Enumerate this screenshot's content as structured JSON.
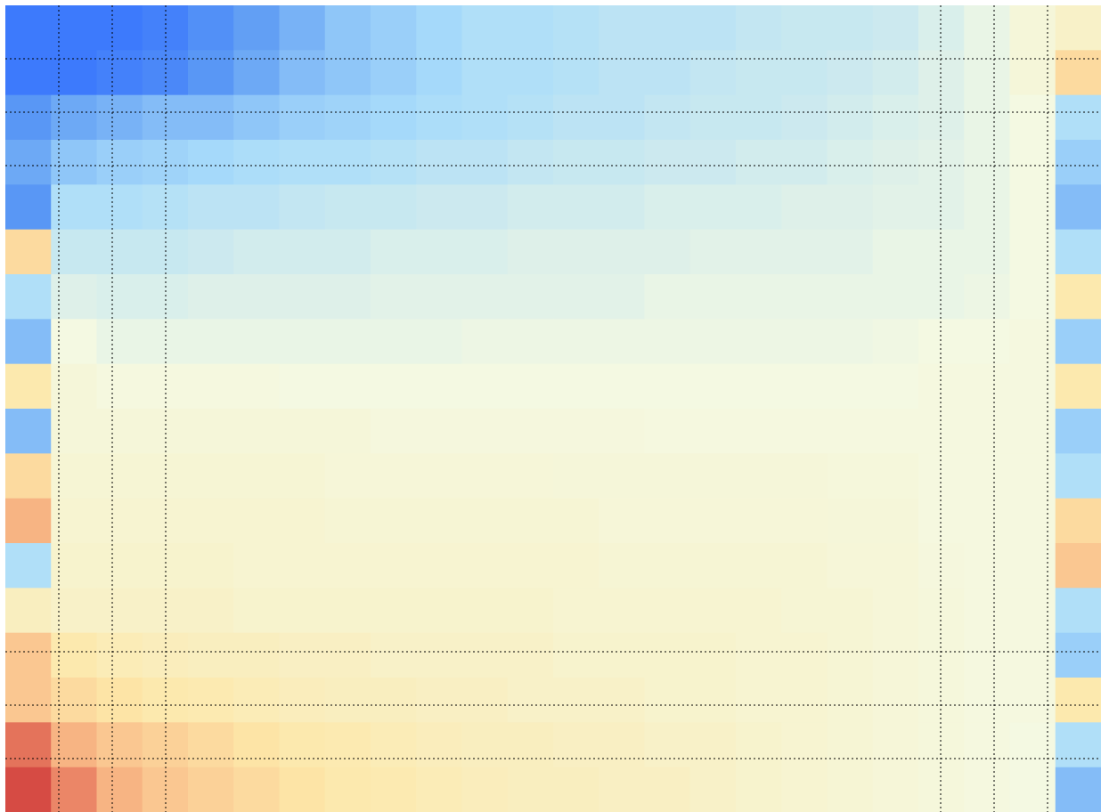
{
  "chart_data": {
    "type": "heatmap",
    "zlim": [
      -1,
      1
    ],
    "colormap": [
      "#2f6bff",
      "#5e9cf4",
      "#a9dcfa",
      "#f4f9e2",
      "#fde7a8",
      "#f6a77a",
      "#c8242d"
    ],
    "z": [
      [
        -0.9,
        -0.9,
        -0.9,
        -0.85,
        -0.75,
        -0.65,
        -0.55,
        -0.45,
        -0.4,
        -0.35,
        -0.3,
        -0.3,
        -0.28,
        -0.25,
        -0.25,
        -0.25,
        -0.22,
        -0.2,
        -0.2,
        -0.18,
        -0.12,
        -0.05,
        0.05,
        0.15
      ],
      [
        -0.9,
        -0.9,
        -0.85,
        -0.8,
        -0.7,
        -0.6,
        -0.5,
        -0.45,
        -0.4,
        -0.35,
        -0.3,
        -0.3,
        -0.28,
        -0.25,
        -0.25,
        -0.22,
        -0.2,
        -0.2,
        -0.18,
        -0.15,
        -0.1,
        -0.05,
        0.05,
        0.4
      ],
      [
        -0.7,
        -0.6,
        -0.55,
        -0.5,
        -0.5,
        -0.45,
        -0.4,
        -0.38,
        -0.35,
        -0.32,
        -0.3,
        -0.28,
        -0.25,
        -0.25,
        -0.22,
        -0.2,
        -0.2,
        -0.18,
        -0.15,
        -0.12,
        -0.1,
        -0.05,
        0.0,
        -0.3
      ],
      [
        -0.6,
        -0.45,
        -0.4,
        -0.38,
        -0.35,
        -0.32,
        -0.3,
        -0.3,
        -0.28,
        -0.25,
        -0.25,
        -0.22,
        -0.2,
        -0.2,
        -0.18,
        -0.18,
        -0.15,
        -0.15,
        -0.12,
        -0.1,
        -0.08,
        -0.05,
        0.0,
        -0.4
      ],
      [
        -0.7,
        -0.3,
        -0.3,
        -0.28,
        -0.25,
        -0.25,
        -0.22,
        -0.2,
        -0.2,
        -0.18,
        -0.18,
        -0.15,
        -0.15,
        -0.15,
        -0.12,
        -0.12,
        -0.12,
        -0.1,
        -0.1,
        -0.08,
        -0.08,
        -0.05,
        0.0,
        -0.5
      ],
      [
        0.4,
        -0.2,
        -0.2,
        -0.2,
        -0.18,
        -0.15,
        -0.15,
        -0.15,
        -0.12,
        -0.12,
        -0.12,
        -0.1,
        -0.1,
        -0.1,
        -0.1,
        -0.08,
        -0.08,
        -0.08,
        -0.08,
        -0.05,
        -0.05,
        -0.05,
        0.0,
        -0.3
      ],
      [
        -0.3,
        -0.1,
        -0.12,
        -0.12,
        -0.1,
        -0.1,
        -0.1,
        -0.1,
        -0.08,
        -0.08,
        -0.08,
        -0.08,
        -0.08,
        -0.08,
        -0.05,
        -0.05,
        -0.05,
        -0.05,
        -0.05,
        -0.05,
        -0.05,
        -0.03,
        0.0,
        0.3
      ],
      [
        -0.5,
        0.0,
        -0.05,
        -0.05,
        -0.05,
        -0.05,
        -0.05,
        -0.05,
        -0.05,
        -0.05,
        -0.03,
        -0.03,
        -0.03,
        -0.03,
        -0.03,
        -0.03,
        -0.03,
        -0.03,
        -0.03,
        -0.02,
        0.0,
        0.0,
        0.02,
        -0.4
      ],
      [
        0.3,
        0.05,
        0.02,
        0.02,
        0.02,
        0.02,
        0.0,
        0.0,
        0.0,
        0.0,
        0.0,
        0.0,
        0.0,
        0.0,
        0.0,
        0.0,
        0.0,
        0.0,
        0.0,
        0.0,
        0.02,
        0.02,
        0.02,
        0.3
      ],
      [
        -0.5,
        0.05,
        0.05,
        0.05,
        0.05,
        0.05,
        0.05,
        0.05,
        0.03,
        0.03,
        0.03,
        0.03,
        0.03,
        0.03,
        0.02,
        0.02,
        0.02,
        0.02,
        0.02,
        0.02,
        0.02,
        0.02,
        0.02,
        -0.4
      ],
      [
        0.4,
        0.08,
        0.08,
        0.08,
        0.08,
        0.08,
        0.08,
        0.06,
        0.06,
        0.06,
        0.06,
        0.06,
        0.05,
        0.05,
        0.05,
        0.05,
        0.05,
        0.05,
        0.04,
        0.04,
        0.02,
        0.02,
        0.02,
        -0.3
      ],
      [
        0.6,
        0.1,
        0.1,
        0.1,
        0.1,
        0.1,
        0.1,
        0.08,
        0.08,
        0.08,
        0.08,
        0.08,
        0.08,
        0.06,
        0.06,
        0.06,
        0.06,
        0.06,
        0.05,
        0.05,
        0.02,
        0.02,
        0.02,
        0.4
      ],
      [
        -0.3,
        0.12,
        0.12,
        0.12,
        0.12,
        0.1,
        0.1,
        0.1,
        0.1,
        0.1,
        0.1,
        0.1,
        0.1,
        0.08,
        0.08,
        0.08,
        0.08,
        0.08,
        0.06,
        0.06,
        0.03,
        0.02,
        0.02,
        0.5
      ],
      [
        0.2,
        0.15,
        0.15,
        0.15,
        0.15,
        0.12,
        0.12,
        0.12,
        0.12,
        0.12,
        0.12,
        0.12,
        0.1,
        0.1,
        0.1,
        0.1,
        0.1,
        0.08,
        0.08,
        0.06,
        0.04,
        0.02,
        0.02,
        -0.3
      ],
      [
        0.5,
        0.3,
        0.25,
        0.22,
        0.2,
        0.2,
        0.18,
        0.18,
        0.15,
        0.15,
        0.15,
        0.15,
        0.12,
        0.12,
        0.12,
        0.12,
        0.1,
        0.1,
        0.08,
        0.06,
        0.04,
        0.02,
        0.02,
        -0.4
      ],
      [
        0.5,
        0.4,
        0.35,
        0.3,
        0.28,
        0.25,
        0.22,
        0.2,
        0.2,
        0.18,
        0.18,
        0.15,
        0.15,
        0.15,
        0.12,
        0.12,
        0.1,
        0.1,
        0.08,
        0.06,
        0.04,
        0.02,
        0.02,
        0.3
      ],
      [
        0.8,
        0.6,
        0.5,
        0.45,
        0.4,
        0.35,
        0.3,
        0.28,
        0.25,
        0.22,
        0.2,
        0.2,
        0.18,
        0.18,
        0.15,
        0.15,
        0.12,
        0.1,
        0.08,
        0.06,
        0.04,
        0.02,
        0.0,
        -0.3
      ],
      [
        0.9,
        0.75,
        0.6,
        0.5,
        0.45,
        0.4,
        0.35,
        0.3,
        0.28,
        0.25,
        0.22,
        0.2,
        0.2,
        0.18,
        0.18,
        0.15,
        0.12,
        0.1,
        0.08,
        0.06,
        0.04,
        0.02,
        0.0,
        -0.5
      ]
    ]
  }
}
